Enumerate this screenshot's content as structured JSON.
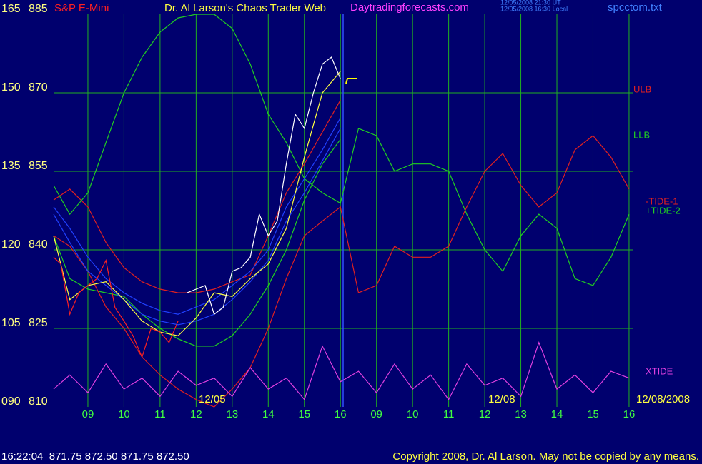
{
  "chart_data": {
    "type": "line",
    "title": "S&P E-Mini",
    "subtitle": "Dr. Al Larson's Chaos Trader Web",
    "annotations": [
      "Daytradingforecasts.com",
      "12/05/2008 21:30 UT",
      "12/05/2008 16:30 Local",
      "spcctom.txt"
    ],
    "date_labels": [
      "12/05",
      "12/08",
      "12/08/2008"
    ],
    "footer": {
      "status": "16:22:04  871.75 872.50 871.75 872.50",
      "copyright": "Copyright 2008, Dr. Al Larson. May not be copied by any means."
    },
    "grid": true,
    "grid_color": "#20b020",
    "xlim": [
      0,
      16.1
    ],
    "xticks": [
      {
        "value": 1,
        "label": "09"
      },
      {
        "value": 2,
        "label": "10"
      },
      {
        "value": 3,
        "label": "11"
      },
      {
        "value": 4,
        "label": "12"
      },
      {
        "value": 5,
        "label": "13"
      },
      {
        "value": 6,
        "label": "14"
      },
      {
        "value": 7,
        "label": "15"
      },
      {
        "value": 8,
        "label": "16"
      },
      {
        "value": 9,
        "label": "09"
      },
      {
        "value": 10,
        "label": "10"
      },
      {
        "value": 11,
        "label": "11"
      },
      {
        "value": 12,
        "label": "12"
      },
      {
        "value": 13,
        "label": "13"
      },
      {
        "value": 14,
        "label": "14"
      },
      {
        "value": 15,
        "label": "15"
      },
      {
        "value": 16,
        "label": "16"
      }
    ],
    "ylim": [
      810,
      885
    ],
    "yticks": [
      810,
      825,
      840,
      855,
      870,
      885
    ],
    "y2lim": [
      90,
      165
    ],
    "y2ticks": [
      {
        "value": 90,
        "label": "090"
      },
      105,
      120,
      135,
      150,
      165
    ],
    "series": [
      {
        "name": "ULB",
        "color": "#e02020",
        "x": [
          0.05,
          0.5,
          1,
          1.5,
          2,
          2.5,
          3,
          3.5,
          4,
          4.5,
          5,
          5.5,
          6,
          6.5,
          7,
          7.5,
          8
        ],
        "values": [
          849.5,
          851.6,
          848.2,
          841.4,
          836.6,
          833.9,
          832.5,
          831.8,
          831.8,
          832.5,
          833.9,
          835.2,
          842.7,
          850.9,
          856.4,
          862.5,
          868.6
        ]
      },
      {
        "name": "LLB",
        "color": "#20d020",
        "x": [
          0.05,
          0.5,
          1,
          1.5,
          2,
          2.5,
          3,
          3.5,
          4,
          4.5,
          5,
          5.5,
          6,
          6.5,
          7,
          7.5,
          8
        ],
        "values": [
          842.7,
          834.5,
          832.5,
          831.8,
          831.1,
          827.7,
          825,
          823,
          821.6,
          821.6,
          823.6,
          827.7,
          833.2,
          840,
          849.5,
          856.4,
          861.1
        ]
      },
      {
        "name": "-TIDE-1",
        "color": "#e02020",
        "axis": "y2",
        "x": [
          0.05,
          0.5,
          1,
          1.5,
          2,
          2.5,
          3,
          3.5,
          4,
          4.5,
          5,
          5.5,
          6,
          6.5,
          7,
          7.5,
          8,
          8.5,
          9,
          9.5,
          10,
          10.5,
          11,
          11.5,
          12,
          12.5,
          13,
          13.5,
          14,
          14.5,
          15,
          15.5,
          16
        ],
        "values": [
          122.7,
          120.7,
          115.9,
          109.1,
          105,
          99.5,
          96.1,
          93.4,
          91.4,
          90,
          93.4,
          97.5,
          105,
          114.5,
          122.7,
          125.5,
          128.2,
          111.8,
          113.2,
          120.7,
          118.6,
          118.6,
          120.7,
          128.2,
          135,
          138.4,
          132.3,
          128.2,
          130.9,
          139.1,
          141.8,
          137.7,
          131.6
        ]
      },
      {
        "name": "+TIDE-2",
        "color": "#20d020",
        "axis": "y2",
        "x": [
          0.05,
          0.5,
          1,
          1.5,
          2,
          2.5,
          3,
          3.5,
          4,
          4.5,
          5,
          5.5,
          6,
          6.5,
          7,
          7.5,
          8,
          8.5,
          9,
          9.5,
          10,
          10.5,
          11,
          11.5,
          12,
          12.5,
          13,
          13.5,
          14,
          14.5,
          15,
          15.5,
          16
        ],
        "values": [
          132.3,
          126.8,
          130.9,
          140.5,
          150,
          156.8,
          161.6,
          164.3,
          165,
          165,
          162.3,
          155.5,
          145.9,
          140.5,
          133.6,
          130.9,
          128.9,
          143.2,
          141.8,
          135,
          136.4,
          136.4,
          135,
          126.8,
          120,
          115.9,
          122.7,
          126.8,
          124.1,
          114.5,
          113.2,
          118.6,
          126.8
        ]
      },
      {
        "name": "XTIDE",
        "color": "#e040e0",
        "axis": "y2",
        "x": [
          0.05,
          0.5,
          1,
          1.5,
          2,
          2.5,
          3,
          3.5,
          4,
          4.5,
          5,
          5.5,
          6,
          6.5,
          7,
          7.5,
          8,
          8.5,
          9,
          9.5,
          10,
          10.5,
          11,
          11.5,
          12,
          12.5,
          13,
          13.5,
          14,
          14.5,
          15,
          15.5,
          16
        ],
        "values": [
          93.4,
          96.1,
          92.7,
          98.2,
          93.4,
          95.5,
          92,
          96.8,
          94.1,
          95.5,
          92,
          97.5,
          93.4,
          95.5,
          91.4,
          101.6,
          94.8,
          96.8,
          92.7,
          98.2,
          93.4,
          96.1,
          91.4,
          98.2,
          94.1,
          95.5,
          92,
          102.3,
          93.4,
          96.1,
          92.7,
          96.8,
          95.5
        ]
      },
      {
        "color": "#2040ff",
        "x": [
          0.05,
          0.5,
          1,
          1.5,
          2,
          2.5,
          3,
          3.5,
          4,
          4.5,
          5,
          5.5,
          6,
          6.5,
          7,
          7.5,
          8
        ],
        "values": [
          848.2,
          844.1,
          838.6,
          834.5,
          831.8,
          829.8,
          828.4,
          827.7,
          829.1,
          830.5,
          833.2,
          835.9,
          840,
          848.2,
          853.6,
          859.1,
          865.2
        ]
      },
      {
        "color": "#2040ff",
        "x": [
          0.05,
          0.5,
          1,
          1.5,
          2,
          2.5,
          3,
          3.5,
          4,
          4.5,
          5,
          5.5,
          6,
          6.5,
          7,
          7.5,
          8
        ],
        "values": [
          846.8,
          841.4,
          835.9,
          833.2,
          830.5,
          827.7,
          826.4,
          825.7,
          826.4,
          827.7,
          830.5,
          833.9,
          838,
          845.5,
          850.9,
          857,
          863.2
        ]
      },
      {
        "color": "#ffff40",
        "x": [
          0.05,
          0.5,
          1,
          1.5,
          2,
          2.5,
          3,
          3.5,
          4,
          4.5,
          5,
          5.5,
          6,
          6.5,
          7,
          7.5,
          8
        ],
        "values": [
          842.7,
          830.5,
          833.2,
          833.9,
          830.5,
          826.4,
          824.3,
          823.6,
          827,
          831.8,
          831.1,
          834.5,
          837.3,
          844.1,
          857.7,
          870,
          874.1
        ]
      },
      {
        "color": "#ff2020",
        "x": [
          0.05,
          0.25,
          0.5,
          0.75,
          1,
          1.25,
          1.5,
          1.75,
          2,
          2.25,
          2.5,
          2.75,
          3,
          3.25,
          3.5
        ],
        "values": [
          838.6,
          837.3,
          827.7,
          831.8,
          833.2,
          834.5,
          838,
          829,
          826.4,
          823.6,
          819.5,
          825,
          824.3,
          822.3,
          826.4
        ]
      },
      {
        "color": "#ffffff",
        "x": [
          3.75,
          4,
          4.25,
          4.5,
          4.75,
          5,
          5.25,
          5.5,
          5.75,
          6,
          6.25,
          6.5,
          6.75,
          7,
          7.25,
          7.5,
          7.75,
          8
        ],
        "values": [
          831.8,
          832.5,
          833.2,
          827.7,
          829,
          835.9,
          836.6,
          838.6,
          846.8,
          842.7,
          845.5,
          856.4,
          865.9,
          863.2,
          870,
          875.5,
          876.8,
          872.7
        ]
      }
    ]
  }
}
